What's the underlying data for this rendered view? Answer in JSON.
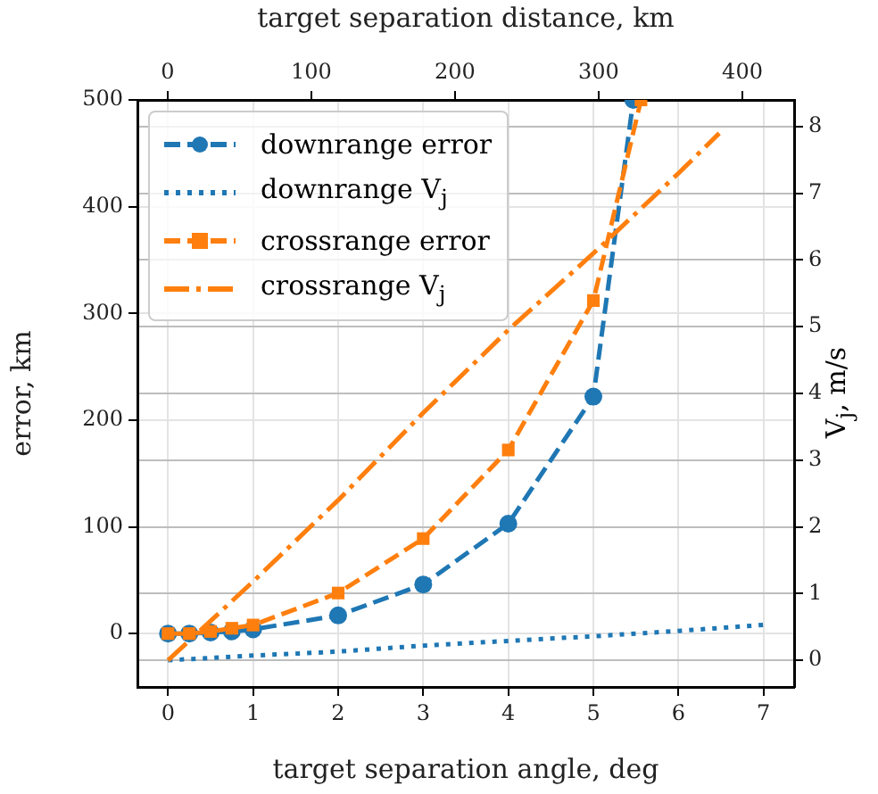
{
  "chart_data": {
    "type": "line",
    "xlabel": "target separation angle, deg",
    "ylabel": "error, km",
    "y2label": "V$_{j}$, m/s",
    "x2label": "target separation distance, km",
    "xlim": [
      -0.36,
      7.36
    ],
    "xticks": [
      0,
      1,
      2,
      3,
      4,
      5,
      6,
      7
    ],
    "x2lim": [
      -21,
      436
    ],
    "x2ticks": [
      0,
      100,
      200,
      300,
      400
    ],
    "ylim": [
      -50,
      500
    ],
    "yticks": [
      0,
      100,
      200,
      300,
      400,
      500
    ],
    "y2lim": [
      -0.4,
      8.4
    ],
    "y2ticks": [
      0,
      1,
      2,
      3,
      4,
      5,
      6,
      7,
      8
    ],
    "grid": true,
    "legend": "top left",
    "series": [
      {
        "name": "downrange error",
        "color": "#1f77b4",
        "marker": "circle",
        "line_style": "dashed",
        "x": [
          0,
          0.25,
          0.5,
          0.75,
          1,
          2,
          3,
          4,
          5,
          5.47
        ],
        "values": [
          0,
          0,
          1,
          2,
          4,
          17,
          46,
          103,
          222,
          500
        ]
      },
      {
        "name": "downrange V$_{j}$",
        "color": "#1f77b4",
        "marker": "none",
        "line_style": "dotted",
        "axis": "y2",
        "x": [
          0,
          1,
          2,
          3,
          4,
          5,
          6,
          7
        ],
        "values": [
          0,
          0.07,
          0.13,
          0.22,
          0.29,
          0.36,
          0.44,
          0.53
        ]
      },
      {
        "name": "crossrange error",
        "color": "#ff7f0e",
        "marker": "square",
        "line_style": "dashed",
        "x": [
          0,
          0.25,
          0.5,
          0.75,
          1,
          2,
          3,
          4,
          5,
          5.56
        ],
        "values": [
          0,
          0,
          2,
          5,
          8,
          38,
          89,
          172,
          312,
          500
        ]
      },
      {
        "name": "crossrange V$_{j}$",
        "color": "#ff7f0e",
        "marker": "none",
        "line_style": "dashdot",
        "axis": "y2",
        "x": [
          0,
          1,
          2,
          3,
          4,
          5,
          6,
          6.48
        ],
        "values": [
          0,
          1.18,
          2.4,
          3.71,
          4.95,
          6.1,
          7.3,
          7.9
        ]
      }
    ]
  }
}
